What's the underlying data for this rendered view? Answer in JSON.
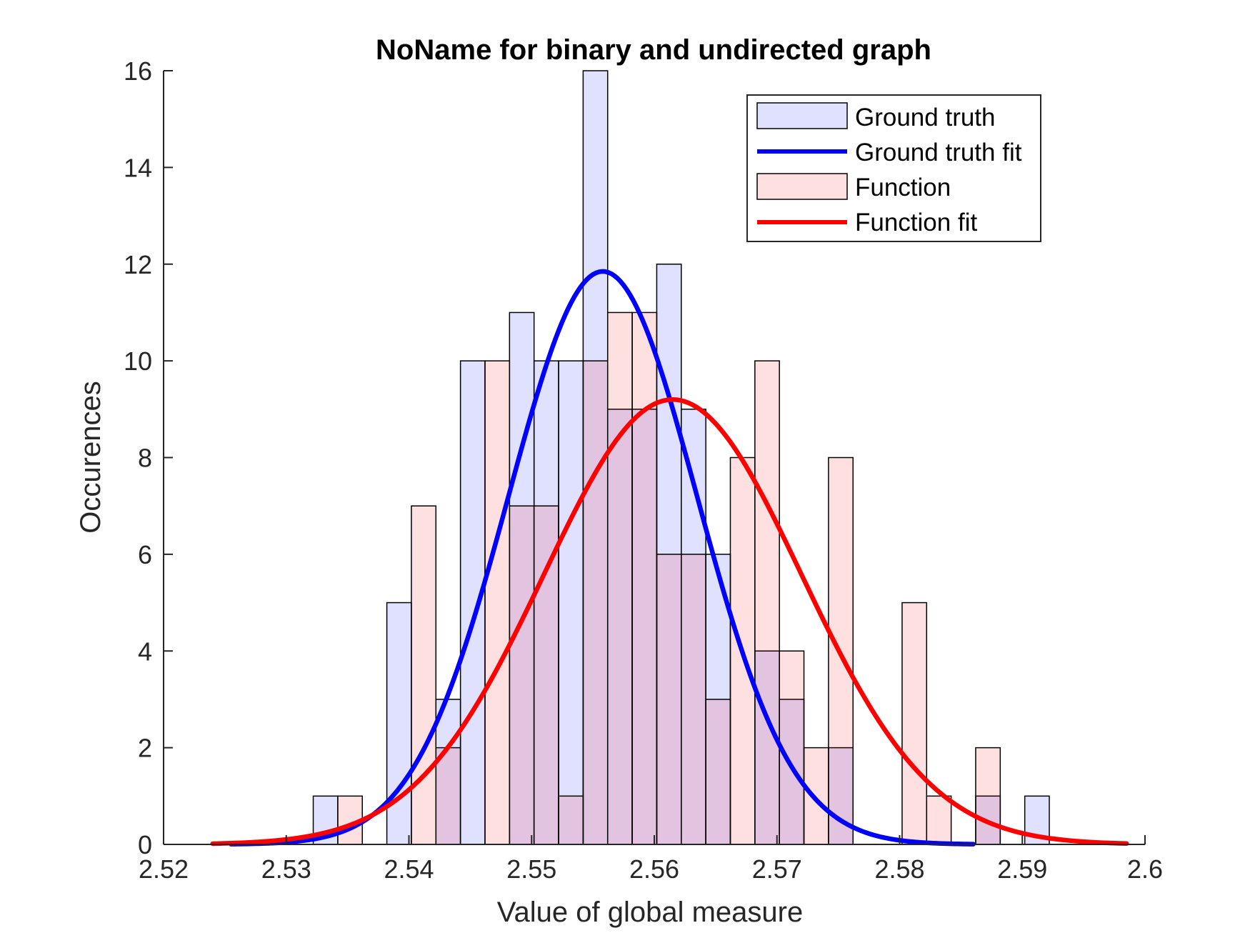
{
  "chart_data": {
    "type": "bar",
    "title": "NoName for binary and undirected graph",
    "xlabel": "Value of global measure",
    "ylabel": "Occurences",
    "xlim": [
      2.52,
      2.6
    ],
    "ylim": [
      0,
      16
    ],
    "xticks": [
      "2.52",
      "2.53",
      "2.54",
      "2.55",
      "2.56",
      "2.57",
      "2.58",
      "2.59",
      "2.6"
    ],
    "xtick_values": [
      2.52,
      2.53,
      2.54,
      2.55,
      2.56,
      2.57,
      2.58,
      2.59,
      2.6
    ],
    "yticks": [
      "0",
      "2",
      "4",
      "6",
      "8",
      "10",
      "12",
      "14",
      "16"
    ],
    "ytick_values": [
      0,
      2,
      4,
      6,
      8,
      10,
      12,
      14,
      16
    ],
    "grid": false,
    "legend_position": "top-right",
    "series": [
      {
        "name": "Ground truth",
        "kind": "histogram",
        "color": "#0000ff",
        "bins": [
          {
            "x0": 2.5322,
            "x1": 2.5342,
            "count": 1
          },
          {
            "x0": 2.5382,
            "x1": 2.5402,
            "count": 5
          },
          {
            "x0": 2.5422,
            "x1": 2.5442,
            "count": 3
          },
          {
            "x0": 2.5442,
            "x1": 2.5462,
            "count": 10
          },
          {
            "x0": 2.5482,
            "x1": 2.5502,
            "count": 11
          },
          {
            "x0": 2.5502,
            "x1": 2.5522,
            "count": 10
          },
          {
            "x0": 2.5522,
            "x1": 2.5542,
            "count": 10
          },
          {
            "x0": 2.5542,
            "x1": 2.5562,
            "count": 16
          },
          {
            "x0": 2.5562,
            "x1": 2.5582,
            "count": 9
          },
          {
            "x0": 2.5582,
            "x1": 2.5602,
            "count": 9
          },
          {
            "x0": 2.5602,
            "x1": 2.5622,
            "count": 12
          },
          {
            "x0": 2.5622,
            "x1": 2.5642,
            "count": 9
          },
          {
            "x0": 2.5642,
            "x1": 2.5662,
            "count": 6
          },
          {
            "x0": 2.5682,
            "x1": 2.5702,
            "count": 4
          },
          {
            "x0": 2.5702,
            "x1": 2.5722,
            "count": 3
          },
          {
            "x0": 2.5742,
            "x1": 2.5762,
            "count": 2
          },
          {
            "x0": 2.5862,
            "x1": 2.5882,
            "count": 1
          },
          {
            "x0": 2.5902,
            "x1": 2.5922,
            "count": 1
          }
        ]
      },
      {
        "name": "Ground truth fit",
        "kind": "normal_fit",
        "color": "#0000ff",
        "mu": 2.5558,
        "sigma": 0.0077,
        "peak": 11.85,
        "x_range": [
          2.5255,
          2.586
        ]
      },
      {
        "name": "Function",
        "kind": "histogram",
        "color": "#ff0000",
        "bins": [
          {
            "x0": 2.5342,
            "x1": 2.5362,
            "count": 1
          },
          {
            "x0": 2.5402,
            "x1": 2.5422,
            "count": 7
          },
          {
            "x0": 2.5422,
            "x1": 2.5442,
            "count": 2
          },
          {
            "x0": 2.5462,
            "x1": 2.5482,
            "count": 10
          },
          {
            "x0": 2.5482,
            "x1": 2.5502,
            "count": 7
          },
          {
            "x0": 2.5502,
            "x1": 2.5522,
            "count": 7
          },
          {
            "x0": 2.5522,
            "x1": 2.5542,
            "count": 1
          },
          {
            "x0": 2.5542,
            "x1": 2.5562,
            "count": 10
          },
          {
            "x0": 2.5562,
            "x1": 2.5582,
            "count": 11
          },
          {
            "x0": 2.5582,
            "x1": 2.5602,
            "count": 11
          },
          {
            "x0": 2.5602,
            "x1": 2.5622,
            "count": 6
          },
          {
            "x0": 2.5622,
            "x1": 2.5642,
            "count": 6
          },
          {
            "x0": 2.5642,
            "x1": 2.5662,
            "count": 3
          },
          {
            "x0": 2.5662,
            "x1": 2.5682,
            "count": 8
          },
          {
            "x0": 2.5682,
            "x1": 2.5702,
            "count": 10
          },
          {
            "x0": 2.5702,
            "x1": 2.5722,
            "count": 4
          },
          {
            "x0": 2.5722,
            "x1": 2.5742,
            "count": 2
          },
          {
            "x0": 2.5742,
            "x1": 2.5762,
            "count": 8
          },
          {
            "x0": 2.5802,
            "x1": 2.5822,
            "count": 5
          },
          {
            "x0": 2.5822,
            "x1": 2.5842,
            "count": 1
          },
          {
            "x0": 2.5862,
            "x1": 2.5882,
            "count": 2
          }
        ]
      },
      {
        "name": "Function fit",
        "kind": "normal_fit",
        "color": "#ff0000",
        "mu": 2.5615,
        "sigma": 0.0105,
        "peak": 9.2,
        "x_range": [
          2.524,
          2.5985
        ]
      }
    ]
  }
}
